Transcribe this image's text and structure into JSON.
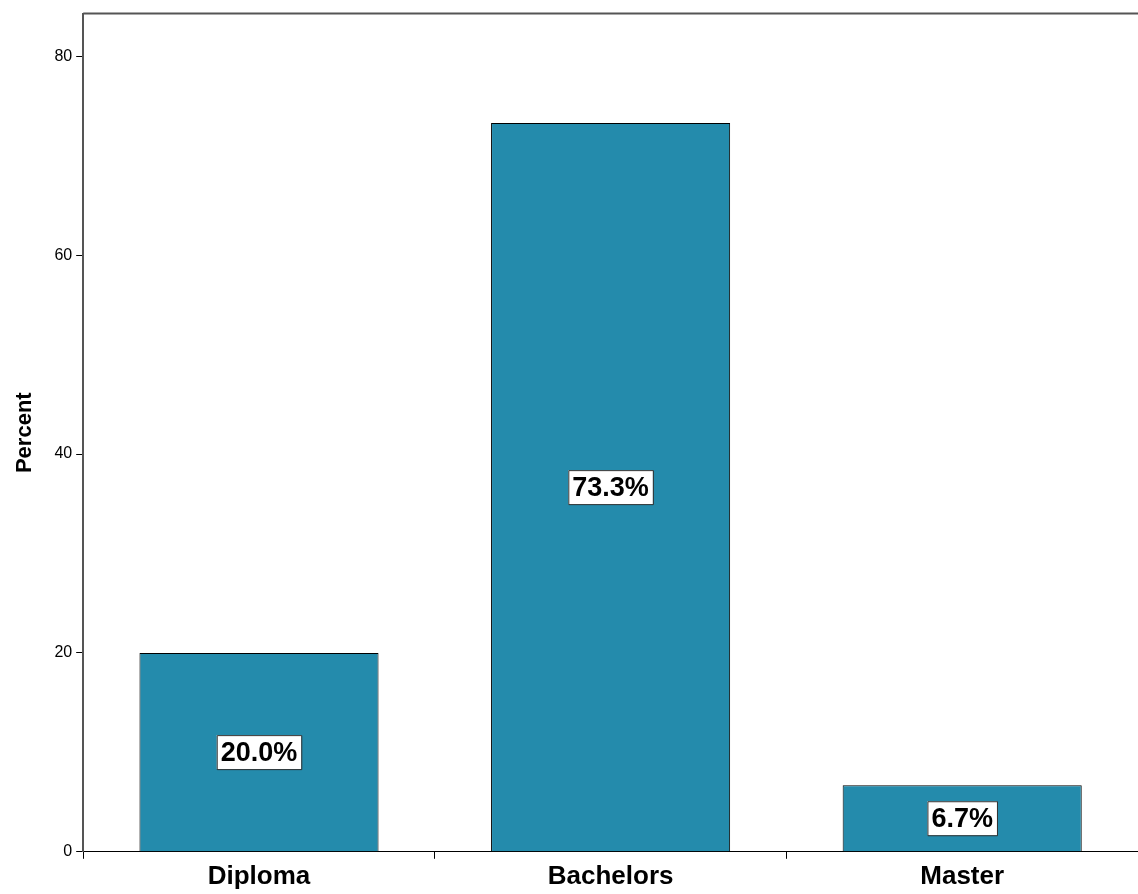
{
  "chart_data": {
    "type": "bar",
    "ylabel": "Percent",
    "categories": [
      "Diploma",
      "Bachelors",
      "Master"
    ],
    "values": [
      20.0,
      73.3,
      6.7
    ],
    "value_labels": [
      "20.0%",
      "73.3%",
      "6.7%"
    ],
    "color": "#248bac",
    "ylim": [
      0,
      84.3
    ],
    "yticks": [
      0,
      20,
      40,
      60,
      80
    ],
    "grid": false,
    "legend": false
  }
}
